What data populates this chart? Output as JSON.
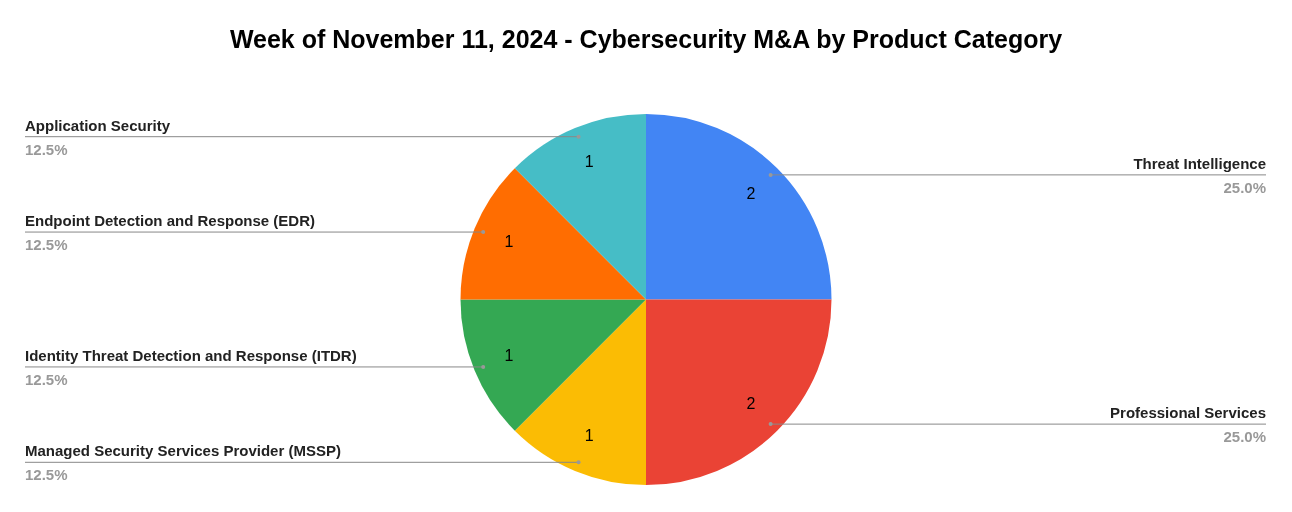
{
  "chart_data": {
    "type": "pie",
    "title": "Week of November 11, 2024 - Cybersecurity M&A by Product Category",
    "categories": [
      "Threat Intelligence",
      "Professional Services",
      "Managed Security Services Provider (MSSP)",
      "Identity Threat Detection and Response (ITDR)",
      "Endpoint Detection and Response (EDR)",
      "Application Security"
    ],
    "values": [
      25,
      25,
      12.5,
      12.5,
      12.5,
      12.5
    ],
    "colors": [
      "#4285f4",
      "#ea4335",
      "#fbbc04",
      "#34a853",
      "#ff6d01",
      "#46bdc6"
    ],
    "value_labels": [
      "25.0%",
      "25.0%",
      "12.5%",
      "12.5%",
      "12.5%",
      "12.5%"
    ],
    "annotations": [
      "2",
      "2",
      "1",
      "1",
      "1",
      "1"
    ],
    "legend": false
  }
}
